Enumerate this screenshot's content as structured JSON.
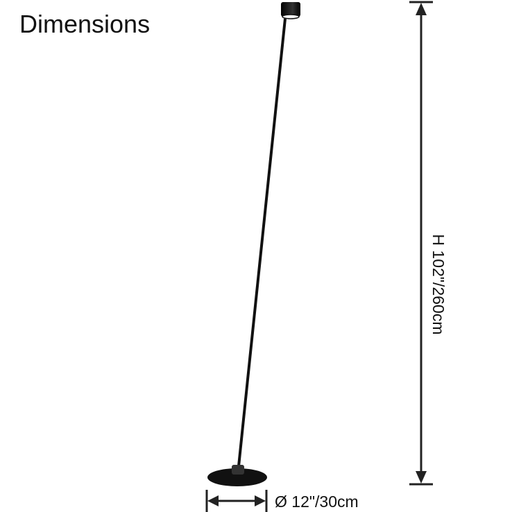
{
  "title": "Dimensions",
  "height_label": "H 102\"/260cm",
  "diameter_label": "Ø 12\"/30cm",
  "colors": {
    "lamp": "#111111",
    "dimension_lines": "#222222",
    "background": "#ffffff"
  }
}
